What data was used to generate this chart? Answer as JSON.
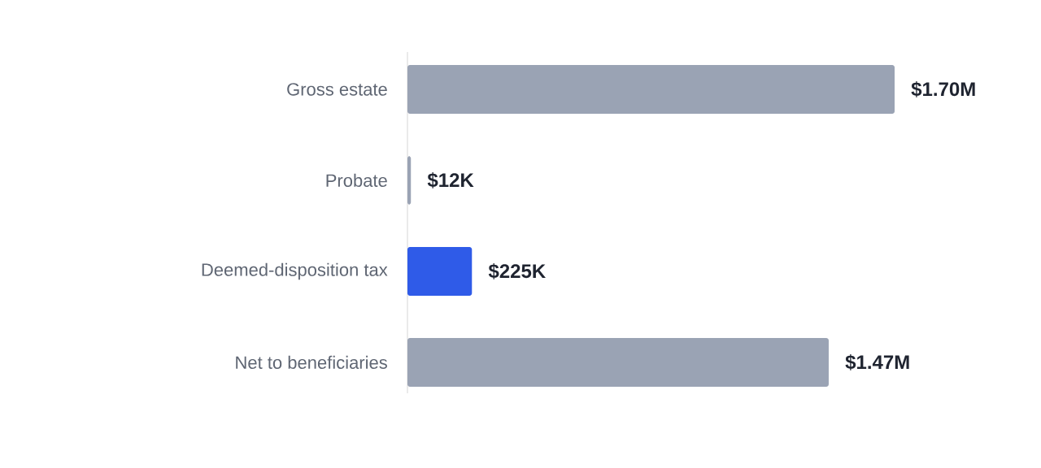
{
  "chart_data": {
    "type": "bar",
    "orientation": "horizontal",
    "categories": [
      "Gross estate",
      "Probate",
      "Deemed-disposition tax",
      "Net to beneficiaries"
    ],
    "values": [
      1700000,
      12000,
      225000,
      1470000
    ],
    "value_labels": [
      "$1.70M",
      "$12K",
      "$225K",
      "$1.47M"
    ],
    "colors": [
      "#9aa3b4",
      "#9aa3b4",
      "#2f5be8",
      "#9aa3b4"
    ]
  }
}
